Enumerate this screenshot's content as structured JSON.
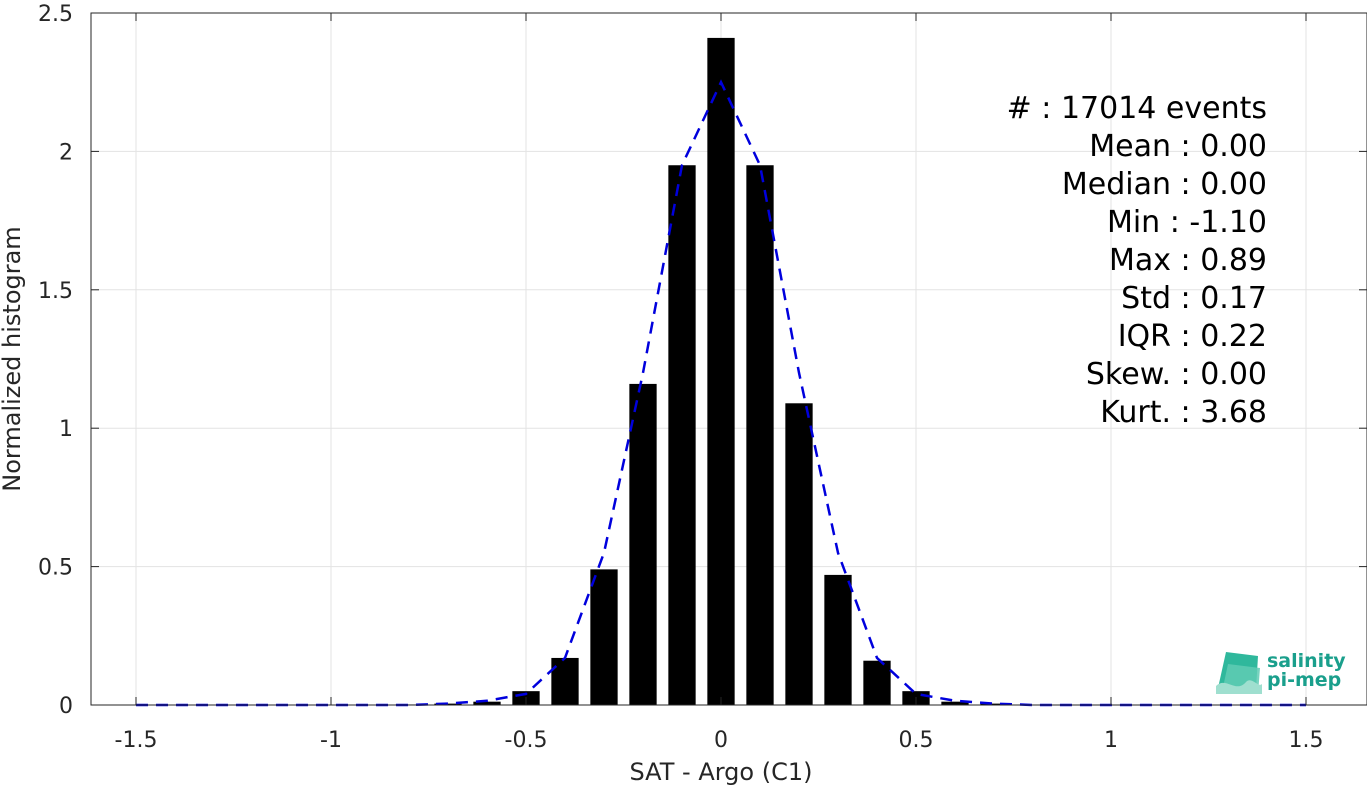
{
  "chart_data": {
    "type": "bar",
    "xlabel": "SAT - Argo (C1)",
    "ylabel": "Normalized histogram",
    "xlim": [
      -1.5,
      1.5
    ],
    "ylim": [
      0,
      2.5
    ],
    "xticks": [
      -1.5,
      -1,
      -0.5,
      0,
      0.5,
      1,
      1.5
    ],
    "xtick_labels": [
      "-1.5",
      "-1",
      "-0.5",
      "0",
      "0.5",
      "1",
      "1.5"
    ],
    "yticks": [
      0,
      0.5,
      1,
      1.5,
      2,
      2.5
    ],
    "ytick_labels": [
      "0",
      "0.5",
      "1",
      "1.5",
      "2",
      "2.5"
    ],
    "grid": true,
    "bar_color": "#000000",
    "bar_width": 0.07,
    "bins": [
      -0.8,
      -0.7,
      -0.6,
      -0.5,
      -0.4,
      -0.3,
      -0.2,
      -0.1,
      0,
      0.1,
      0.2,
      0.3,
      0.4,
      0.5,
      0.6,
      0.7
    ],
    "values": [
      0.002,
      0.005,
      0.012,
      0.05,
      0.17,
      0.49,
      1.16,
      1.95,
      2.41,
      1.95,
      1.09,
      0.47,
      0.16,
      0.05,
      0.012,
      0.005
    ],
    "fit_line": {
      "style": "dashed",
      "color": "#0000dd",
      "x": [
        -1.5,
        -1.0,
        -0.8,
        -0.7,
        -0.6,
        -0.5,
        -0.4,
        -0.3,
        -0.2,
        -0.1,
        0,
        0.1,
        0.2,
        0.3,
        0.4,
        0.5,
        0.6,
        0.7,
        0.8,
        1.0,
        1.5
      ],
      "y": [
        0,
        0,
        0,
        0.005,
        0.015,
        0.04,
        0.17,
        0.55,
        1.2,
        1.95,
        2.25,
        1.95,
        1.2,
        0.55,
        0.17,
        0.04,
        0.015,
        0.005,
        0,
        0,
        0
      ]
    },
    "annotations": [
      "#  : 17014 events",
      "Mean : 0.00",
      "Median : 0.00",
      "Min : -1.10",
      "Max : 0.89",
      "Std : 0.17",
      "IQR : 0.22",
      "Skew. : 0.00",
      "Kurt. : 3.68"
    ]
  },
  "logo": {
    "line1": "salinity",
    "line2": "pi-mep"
  }
}
